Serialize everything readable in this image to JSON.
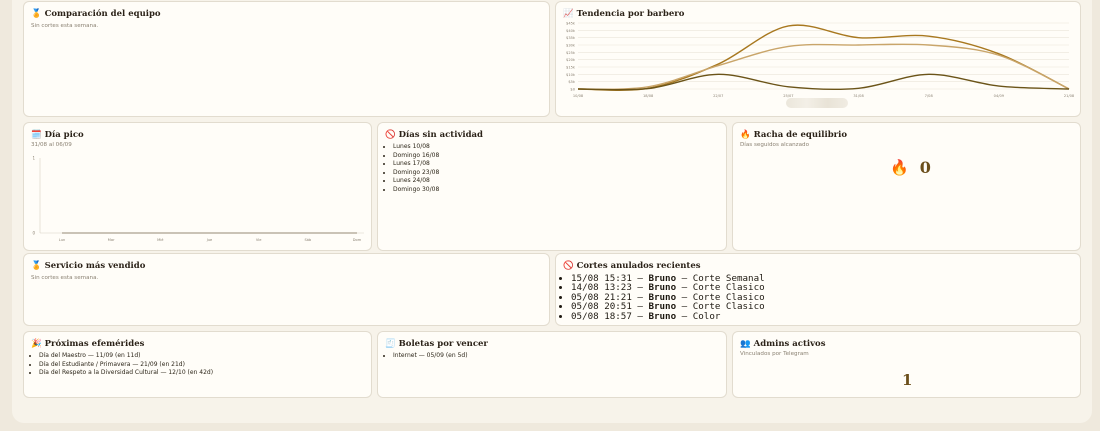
{
  "cards": {
    "comparacion": {
      "icon": "🏅",
      "title": "Comparación del equipo",
      "subtitle": "Sin cortes esta semana."
    },
    "tendencia": {
      "icon": "📈",
      "title": "Tendencia por barbero",
      "y_ticks": [
        "$45k",
        "$40k",
        "$35k",
        "$30k",
        "$25k",
        "$20k",
        "$15k",
        "$10k",
        "$5k",
        "$0"
      ],
      "x_ticks": [
        "10/08",
        "18/08",
        "22/07",
        "25/07",
        "31/08",
        "7/08",
        "04/09",
        "21/08"
      ]
    },
    "dia_pico": {
      "icon": "🗓️",
      "title": "Día pico",
      "subtitle": "31/08 al 06/09",
      "y_ticks": [
        "1",
        "0"
      ],
      "x_ticks": [
        "Lun",
        "Mar",
        "Mié",
        "Jue",
        "Vie",
        "Sáb",
        "Dom"
      ]
    },
    "dias_sin_actividad": {
      "icon": "🚫",
      "title": "Días sin actividad",
      "items": [
        "Lunes 10/08",
        "Domingo 16/08",
        "Lunes 17/08",
        "Domingo 23/08",
        "Lunes 24/08",
        "Domingo 30/08"
      ]
    },
    "racha": {
      "icon": "🔥",
      "title": "Racha de equilibrio",
      "subtitle": "Días seguidos alcanzado",
      "value_icon": "🔥",
      "value": "0"
    },
    "servicio": {
      "icon": "🏅",
      "title": "Servicio más vendido",
      "subtitle": "Sin cortes esta semana."
    },
    "anulados": {
      "icon": "🚫",
      "title": "Cortes anulados recientes",
      "items": [
        {
          "ts": "15/08 15:31",
          "who": "Bruno",
          "what": "Corte Semanal"
        },
        {
          "ts": "14/08 13:23",
          "who": "Bruno",
          "what": "Corte Clasico"
        },
        {
          "ts": "05/08 21:21",
          "who": "Bruno",
          "what": "Corte Clasico"
        },
        {
          "ts": "05/08 20:51",
          "who": "Bruno",
          "what": "Corte Clasico"
        },
        {
          "ts": "05/08 18:57",
          "who": "Bruno",
          "what": "Color"
        }
      ],
      "sep": "—"
    },
    "efemerides": {
      "icon": "🎉",
      "title": "Próximas efemérides",
      "items": [
        "Día del Maestro — 11/09 (en 11d)",
        "Día del Estudiante / Primavera — 21/09 (en 21d)",
        "Día del Respeto a la Diversidad Cultural — 12/10 (en 42d)"
      ]
    },
    "boletas": {
      "icon": "🧾",
      "title": "Boletas por vencer",
      "items": [
        "Internet — 05/09 (en 5d)"
      ]
    },
    "admins": {
      "icon": "👥",
      "title": "Admins activos",
      "subtitle": "Vinculados por Telegram",
      "value": "1"
    }
  },
  "chart_data": [
    {
      "type": "line",
      "x": [
        "10/08",
        "18/08",
        "22/07",
        "25/07",
        "31/08",
        "7/08",
        "04/09",
        "21/08"
      ],
      "ylim": [
        0,
        45000
      ],
      "series": [
        {
          "color": "#a8781f",
          "values": [
            0,
            500,
            17000,
            43000,
            35000,
            36000,
            24000,
            0
          ]
        },
        {
          "color": "#c9a56a",
          "values": [
            0,
            1500,
            16000,
            29000,
            30000,
            30000,
            23000,
            0
          ]
        },
        {
          "color": "#6b5418",
          "values": [
            0,
            300,
            10000,
            1500,
            500,
            10000,
            2000,
            0
          ]
        }
      ]
    },
    {
      "type": "line",
      "x": [
        "Lun",
        "Mar",
        "Mié",
        "Jue",
        "Vie",
        "Sáb",
        "Dom"
      ],
      "ylim": [
        0,
        1
      ],
      "series": [
        {
          "color": "#7a6a4f",
          "values": [
            0,
            0,
            0,
            0,
            0,
            0,
            0
          ]
        }
      ]
    }
  ]
}
